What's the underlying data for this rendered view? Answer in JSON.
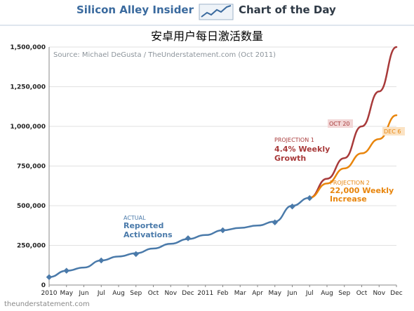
{
  "header": {
    "brand_left": "Silicon Alley Insider",
    "brand_right": "Chart of the Day"
  },
  "title": "安卓用户每日激活数量",
  "footer": "theunderstatement.com",
  "chart_data": {
    "type": "line",
    "source": "Source: Michael DeGusta / TheUnderstatement.com (Oct 2011)",
    "y_ticks": [
      "1,500,000",
      "1,250,000",
      "1,000,000",
      "750,000",
      "500,000",
      "250,000",
      "0"
    ],
    "y_tick_values": [
      1500000,
      1250000,
      1000000,
      750000,
      500000,
      250000,
      0
    ],
    "x_ticks": [
      "2010",
      "May",
      "Jun",
      "Jul",
      "Aug",
      "Sep",
      "Oct",
      "Nov",
      "Dec",
      "2011",
      "Feb",
      "Mar",
      "Apr",
      "May",
      "Jun",
      "Jul",
      "Aug",
      "Sep",
      "Oct",
      "Nov",
      "Dec"
    ],
    "ylim": [
      0,
      1500000
    ],
    "colors": {
      "actual": "#4a7aaa",
      "projection1": "#a83a3a",
      "projection2": "#e8850c",
      "grid": "#e1e1e1"
    },
    "series": [
      {
        "x": [
          "2010-04",
          "2010-05",
          "2010-06",
          "2010-07",
          "2010-08",
          "2010-09",
          "2010-10",
          "2010-11",
          "2010-12",
          "2011-01",
          "2011-02",
          "2011-03",
          "2011-04",
          "2011-05",
          "2011-06",
          "2011-07"
        ],
        "values": [
          50000,
          90000,
          110000,
          155000,
          180000,
          200000,
          230000,
          260000,
          290000,
          315000,
          345000,
          360000,
          375000,
          400000,
          500000,
          550000
        ],
        "markers": [
          50000,
          90000,
          155000,
          195000,
          295000,
          345000,
          395000,
          495000,
          548000
        ]
      },
      {
        "x": [
          "2011-07",
          "2011-08",
          "2011-09",
          "2011-10",
          "2011-11",
          "2011-12"
        ],
        "values": [
          550000,
          670000,
          800000,
          1000000,
          1220000,
          1500000
        ]
      },
      {
        "x": [
          "2011-07",
          "2011-08",
          "2011-09",
          "2011-10",
          "2011-11",
          "2011-12"
        ],
        "values": [
          550000,
          640000,
          735000,
          830000,
          920000,
          1070000
        ]
      }
    ],
    "annotations": {
      "actual_small": "ACTUAL",
      "actual_big_1": "Reported",
      "actual_big_2": "Activations",
      "p1_small": "PROJECTION 1",
      "p1_big_1": "4.4% Weekly",
      "p1_big_2": "Growth",
      "p2_small": "PROJECTION 2",
      "p2_big_1": "22,000 Weekly",
      "p2_big_2": "Increase",
      "oct20": "OCT 20",
      "dec6": "DEC 6"
    }
  }
}
